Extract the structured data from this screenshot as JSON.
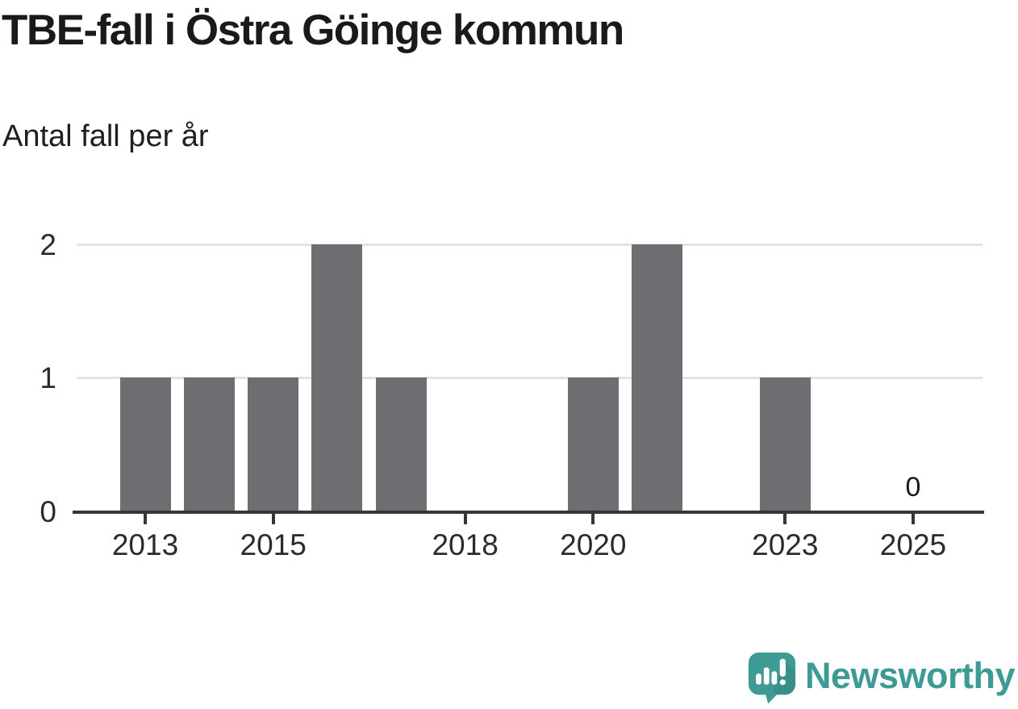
{
  "header": {
    "title": "TBE-fall i Östra Göinge kommun",
    "subtitle": "Antal fall per år"
  },
  "chart_data": {
    "type": "bar",
    "title": "TBE-fall i Östra Göinge kommun",
    "subtitle": "Antal fall per år",
    "categories": [
      "2013",
      "2014",
      "2015",
      "2016",
      "2017",
      "2018",
      "2019",
      "2020",
      "2021",
      "2022",
      "2023",
      "2024",
      "2025"
    ],
    "values": [
      1,
      1,
      1,
      2,
      1,
      0,
      0,
      1,
      2,
      0,
      1,
      0,
      0
    ],
    "xlabel": "",
    "ylabel": "Antal fall per år",
    "ylim": [
      0,
      2
    ],
    "y_ticks": [
      0,
      1,
      2
    ],
    "x_tick_labels": [
      "2013",
      "2015",
      "2018",
      "2020",
      "2023",
      "2025"
    ],
    "grid": "horizontal-only",
    "legend": "none",
    "annotations": [
      {
        "category": "2025",
        "text": "0"
      }
    ]
  },
  "branding": {
    "logo_text": "Newsworthy",
    "logo_icon": "newsworthy-speech-bubble-bar-chart-icon",
    "brand_color": "#3d9a94"
  },
  "colors": {
    "background": "#ffffff",
    "bar": "#6e6d72",
    "gridline": "#e3e3e3",
    "axis": "#363636",
    "title_text": "#1a1a18",
    "tick_text": "#2b2b2b"
  }
}
